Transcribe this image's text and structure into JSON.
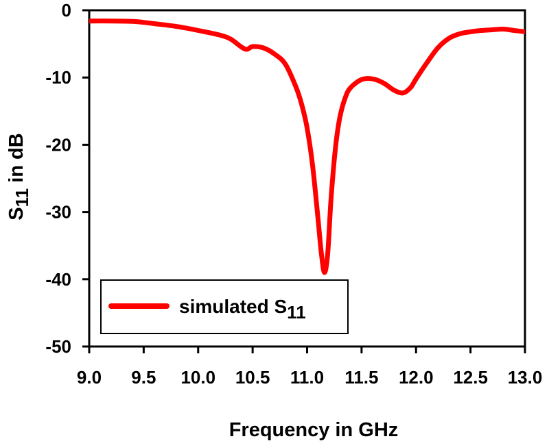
{
  "chart_data": {
    "type": "line",
    "title": "",
    "xlabel": "Frequency in GHz",
    "ylabel": {
      "main": "S",
      "sub": "11",
      "rest": " in dB"
    },
    "xlim": [
      9.0,
      13.0
    ],
    "ylim": [
      -50,
      0
    ],
    "xticks": [
      "9.0",
      "9.5",
      "10.0",
      "10.5",
      "11.0",
      "11.5",
      "12.0",
      "12.5",
      "13.0"
    ],
    "yticks": [
      "0",
      "-10",
      "-20",
      "-30",
      "-40",
      "-50"
    ],
    "grid": false,
    "legend_position": "bottom-left",
    "series": [
      {
        "name": "simulated S11",
        "legend_main": "simulated S",
        "legend_sub": "11",
        "color": "#ff0000",
        "x": [
          9.0,
          9.2,
          9.4,
          9.5,
          9.6,
          9.8,
          10.0,
          10.2,
          10.3,
          10.4,
          10.45,
          10.5,
          10.6,
          10.7,
          10.8,
          10.9,
          10.95,
          11.0,
          11.05,
          11.1,
          11.13,
          11.16,
          11.19,
          11.22,
          11.26,
          11.3,
          11.35,
          11.4,
          11.5,
          11.6,
          11.7,
          11.8,
          11.88,
          11.95,
          12.0,
          12.1,
          12.2,
          12.3,
          12.4,
          12.5,
          12.6,
          12.7,
          12.8,
          12.9,
          13.0
        ],
        "y": [
          -1.6,
          -1.6,
          -1.65,
          -1.8,
          -2.0,
          -2.4,
          -3.0,
          -3.7,
          -4.3,
          -5.5,
          -5.8,
          -5.4,
          -5.6,
          -6.5,
          -8.0,
          -11.5,
          -14.0,
          -17.5,
          -23.0,
          -31.0,
          -36.0,
          -39.0,
          -36.0,
          -28.0,
          -20.5,
          -16.0,
          -13.0,
          -11.5,
          -10.3,
          -10.2,
          -10.8,
          -11.9,
          -12.3,
          -11.5,
          -10.2,
          -7.8,
          -5.6,
          -4.2,
          -3.5,
          -3.2,
          -3.0,
          -2.9,
          -2.8,
          -3.0,
          -3.2
        ]
      }
    ]
  }
}
